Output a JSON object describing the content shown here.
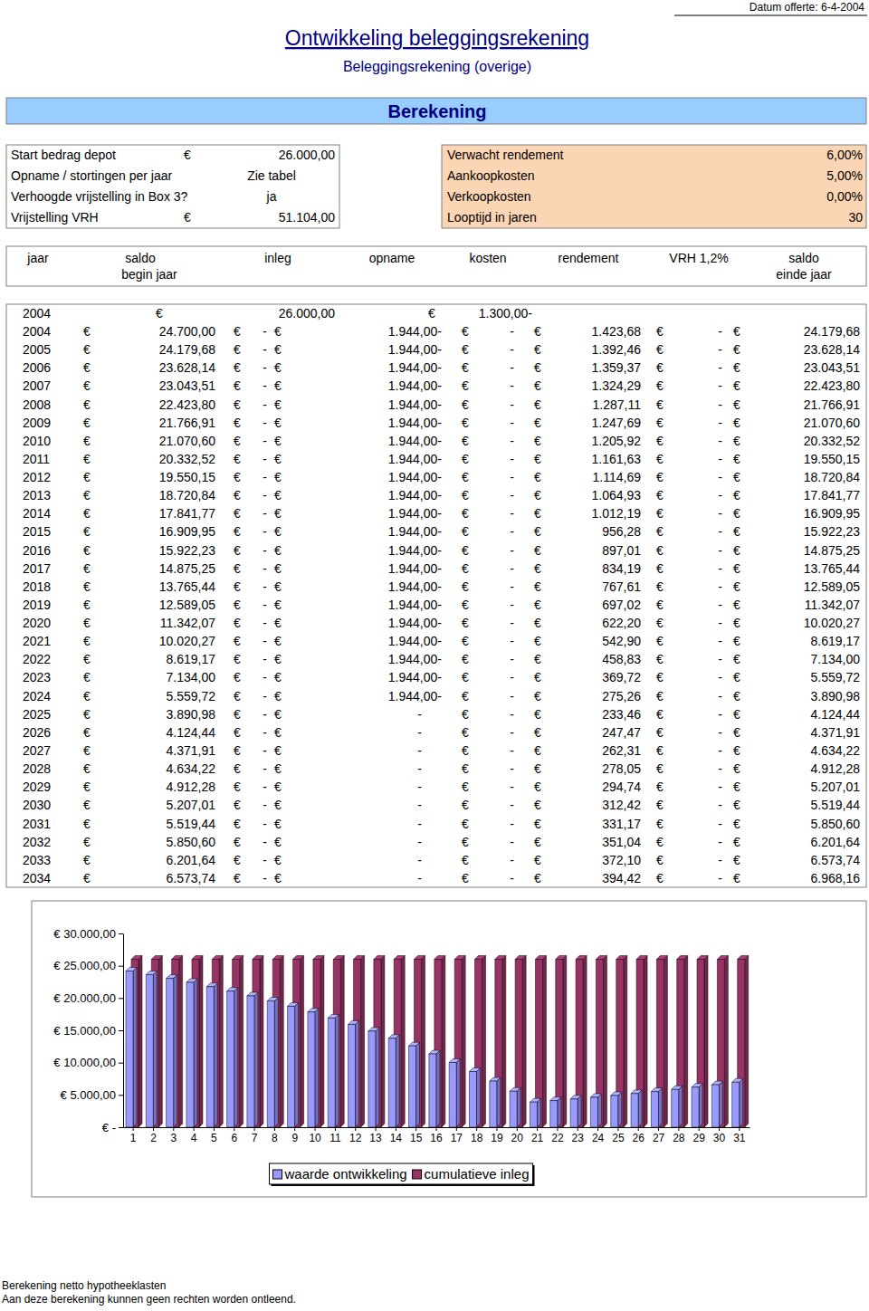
{
  "header": {
    "date": "Datum offerte: 6-4-2004",
    "title": "Ontwikkeling beleggingsrekening",
    "subtitle": "Beleggingsrekening (overige)",
    "section": "Berekening"
  },
  "currency": "€",
  "params": {
    "left": [
      {
        "label": "Start bedrag depot",
        "value": "26.000,00"
      },
      {
        "label": "Opname / stortingen per jaar",
        "value": "Zie tabel"
      },
      {
        "label": "Verhoogde vrijstelling in Box 3?",
        "value": "ja"
      },
      {
        "label": "Vrijstelling VRH",
        "value": "51.104,00"
      }
    ],
    "right": [
      {
        "label": "Verwacht rendement",
        "value": "6,00%"
      },
      {
        "label": "Aankoopkosten",
        "value": "5,00%"
      },
      {
        "label": "Verkoopkosten",
        "value": "0,00%"
      },
      {
        "label": "Looptijd in jaren",
        "value": "30"
      }
    ]
  },
  "table": {
    "columns": [
      [
        "jaar"
      ],
      [
        "saldo",
        "begin jaar"
      ],
      [
        "inleg"
      ],
      [
        "opname"
      ],
      [
        "kosten"
      ],
      [
        "rendement"
      ],
      [
        "VRH 1,2%"
      ],
      [
        "saldo",
        "einde jaar"
      ]
    ],
    "rows": [
      [
        "2004",
        null,
        "26.000,00",
        null,
        "1.300,00-",
        null,
        null,
        null
      ],
      [
        "2004",
        "24.700,00",
        "-",
        "1.944,00-",
        "-",
        "1.423,68",
        "-",
        "24.179,68"
      ],
      [
        "2005",
        "24.179,68",
        "-",
        "1.944,00-",
        "-",
        "1.392,46",
        "-",
        "23.628,14"
      ],
      [
        "2006",
        "23.628,14",
        "-",
        "1.944,00-",
        "-",
        "1.359,37",
        "-",
        "23.043,51"
      ],
      [
        "2007",
        "23.043,51",
        "-",
        "1.944,00-",
        "-",
        "1.324,29",
        "-",
        "22.423,80"
      ],
      [
        "2008",
        "22.423,80",
        "-",
        "1.944,00-",
        "-",
        "1.287,11",
        "-",
        "21.766,91"
      ],
      [
        "2009",
        "21.766,91",
        "-",
        "1.944,00-",
        "-",
        "1.247,69",
        "-",
        "21.070,60"
      ],
      [
        "2010",
        "21.070,60",
        "-",
        "1.944,00-",
        "-",
        "1.205,92",
        "-",
        "20.332,52"
      ],
      [
        "2011",
        "20.332,52",
        "-",
        "1.944,00-",
        "-",
        "1.161,63",
        "-",
        "19.550,15"
      ],
      [
        "2012",
        "19.550,15",
        "-",
        "1.944,00-",
        "-",
        "1.114,69",
        "-",
        "18.720,84"
      ],
      [
        "2013",
        "18.720,84",
        "-",
        "1.944,00-",
        "-",
        "1.064,93",
        "-",
        "17.841,77"
      ],
      [
        "2014",
        "17.841,77",
        "-",
        "1.944,00-",
        "-",
        "1.012,19",
        "-",
        "16.909,95"
      ],
      [
        "2015",
        "16.909,95",
        "-",
        "1.944,00-",
        "-",
        "956,28",
        "-",
        "15.922,23"
      ],
      [
        "2016",
        "15.922,23",
        "-",
        "1.944,00-",
        "-",
        "897,01",
        "-",
        "14.875,25"
      ],
      [
        "2017",
        "14.875,25",
        "-",
        "1.944,00-",
        "-",
        "834,19",
        "-",
        "13.765,44"
      ],
      [
        "2018",
        "13.765,44",
        "-",
        "1.944,00-",
        "-",
        "767,61",
        "-",
        "12.589,05"
      ],
      [
        "2019",
        "12.589,05",
        "-",
        "1.944,00-",
        "-",
        "697,02",
        "-",
        "11.342,07"
      ],
      [
        "2020",
        "11.342,07",
        "-",
        "1.944,00-",
        "-",
        "622,20",
        "-",
        "10.020,27"
      ],
      [
        "2021",
        "10.020,27",
        "-",
        "1.944,00-",
        "-",
        "542,90",
        "-",
        "8.619,17"
      ],
      [
        "2022",
        "8.619,17",
        "-",
        "1.944,00-",
        "-",
        "458,83",
        "-",
        "7.134,00"
      ],
      [
        "2023",
        "7.134,00",
        "-",
        "1.944,00-",
        "-",
        "369,72",
        "-",
        "5.559,72"
      ],
      [
        "2024",
        "5.559,72",
        "-",
        "1.944,00-",
        "-",
        "275,26",
        "-",
        "3.890,98"
      ],
      [
        "2025",
        "3.890,98",
        "-",
        "-",
        "-",
        "233,46",
        "-",
        "4.124,44"
      ],
      [
        "2026",
        "4.124,44",
        "-",
        "-",
        "-",
        "247,47",
        "-",
        "4.371,91"
      ],
      [
        "2027",
        "4.371,91",
        "-",
        "-",
        "-",
        "262,31",
        "-",
        "4.634,22"
      ],
      [
        "2028",
        "4.634,22",
        "-",
        "-",
        "-",
        "278,05",
        "-",
        "4.912,28"
      ],
      [
        "2029",
        "4.912,28",
        "-",
        "-",
        "-",
        "294,74",
        "-",
        "5.207,01"
      ],
      [
        "2030",
        "5.207,01",
        "-",
        "-",
        "-",
        "312,42",
        "-",
        "5.519,44"
      ],
      [
        "2031",
        "5.519,44",
        "-",
        "-",
        "-",
        "331,17",
        "-",
        "5.850,60"
      ],
      [
        "2032",
        "5.850,60",
        "-",
        "-",
        "-",
        "351,04",
        "-",
        "6.201,64"
      ],
      [
        "2033",
        "6.201,64",
        "-",
        "-",
        "-",
        "372,10",
        "-",
        "6.573,74"
      ],
      [
        "2034",
        "6.573,74",
        "-",
        "-",
        "-",
        "394,42",
        "-",
        "6.968,16"
      ]
    ]
  },
  "chart_data": {
    "type": "bar",
    "categories": [
      "1",
      "2",
      "3",
      "4",
      "5",
      "6",
      "7",
      "8",
      "9",
      "10",
      "11",
      "12",
      "13",
      "14",
      "15",
      "16",
      "17",
      "18",
      "19",
      "20",
      "21",
      "22",
      "23",
      "24",
      "25",
      "26",
      "27",
      "28",
      "29",
      "30",
      "31"
    ],
    "series": [
      {
        "name": "waarde ontwikkeling",
        "color": "#9999ff",
        "values": [
          24179.68,
          23628.14,
          23043.51,
          22423.8,
          21766.91,
          21070.6,
          20332.52,
          19550.15,
          18720.84,
          17841.77,
          16909.95,
          15922.23,
          14875.25,
          13765.44,
          12589.05,
          11342.07,
          10020.27,
          8619.17,
          7134.0,
          5559.72,
          3890.98,
          4124.44,
          4371.91,
          4634.22,
          4912.28,
          5207.01,
          5519.44,
          5850.6,
          6201.64,
          6573.74,
          6968.16
        ]
      },
      {
        "name": "cumulatieve inleg",
        "color": "#993366",
        "values": [
          26000,
          26000,
          26000,
          26000,
          26000,
          26000,
          26000,
          26000,
          26000,
          26000,
          26000,
          26000,
          26000,
          26000,
          26000,
          26000,
          26000,
          26000,
          26000,
          26000,
          26000,
          26000,
          26000,
          26000,
          26000,
          26000,
          26000,
          26000,
          26000,
          26000,
          26000
        ]
      }
    ],
    "ylim": [
      0,
      30000
    ],
    "yticks": [
      {
        "value": 0,
        "label": "€ -"
      },
      {
        "value": 5000,
        "label": "€ 5.000,00"
      },
      {
        "value": 10000,
        "label": "€ 10.000,00"
      },
      {
        "value": 15000,
        "label": "€ 15.000,00"
      },
      {
        "value": 20000,
        "label": "€ 20.000,00"
      },
      {
        "value": 25000,
        "label": "€ 25.000,00"
      },
      {
        "value": 30000,
        "label": "€ 30.000,00"
      }
    ],
    "grid": false,
    "legend": "bottom"
  },
  "footer": {
    "lines": [
      "Berekening netto hypotheeklasten",
      "Aan deze berekening kunnen geen rechten worden ontleend."
    ]
  }
}
